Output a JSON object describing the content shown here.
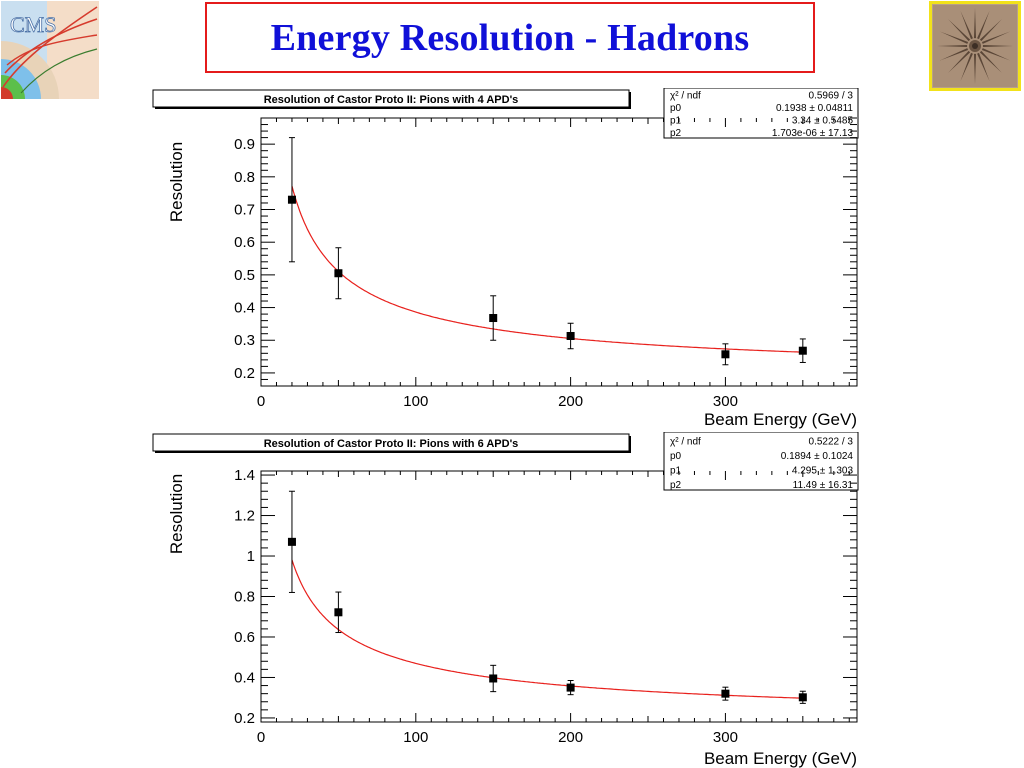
{
  "header": {
    "title": "Energy Resolution - Hadrons",
    "logo_left_text": "CMS"
  },
  "colors": {
    "title_text": "#1010d8",
    "title_border": "#e41b1b",
    "fit_line": "#e8201c",
    "marker": "#000000",
    "logo_right_border": "#f2e21a"
  },
  "chart_data": [
    {
      "type": "scatter",
      "title": "Resolution of Castor Proto II: Pions with 4 APD's",
      "xlabel": "Beam Energy (GeV)",
      "ylabel": "Resolution",
      "xlim": [
        0,
        385
      ],
      "ylim": [
        0.16,
        0.98
      ],
      "x_ticks": [
        0,
        100,
        200,
        300
      ],
      "y_ticks": [
        0.2,
        0.3,
        0.4,
        0.5,
        0.6,
        0.7,
        0.8,
        0.9
      ],
      "x_tick_labels": [
        "0",
        "100",
        "200",
        "300"
      ],
      "y_tick_labels": [
        "0.2",
        "0.3",
        "0.4",
        "0.5",
        "0.6",
        "0.7",
        "0.8",
        "0.9"
      ],
      "series": [
        {
          "x": [
            20,
            50,
            150,
            200,
            300,
            350
          ],
          "y": [
            0.73,
            0.505,
            0.368,
            0.313,
            0.257,
            0.268
          ],
          "err": [
            0.19,
            0.078,
            0.068,
            0.039,
            0.032,
            0.036
          ]
        }
      ],
      "fit": {
        "p0": 0.1938,
        "p1": 3.34,
        "p2": 0.0
      },
      "stats": [
        [
          "χ² / ndf",
          "0.5969 / 3"
        ],
        [
          "p0",
          "0.1938 ± 0.04811"
        ],
        [
          "p1",
          "3.34 ± 0.5485"
        ],
        [
          "p2",
          "1.703e-06 ± 17.13"
        ]
      ]
    },
    {
      "type": "scatter",
      "title": "Resolution of Castor Proto II: Pions with 6 APD's",
      "xlabel": "Beam Energy (GeV)",
      "ylabel": "Resolution",
      "xlim": [
        0,
        385
      ],
      "ylim": [
        0.18,
        1.42
      ],
      "x_ticks": [
        0,
        100,
        200,
        300
      ],
      "y_ticks": [
        0.2,
        0.4,
        0.6,
        0.8,
        1.0,
        1.2,
        1.4
      ],
      "x_tick_labels": [
        "0",
        "100",
        "200",
        "300"
      ],
      "y_tick_labels": [
        "0.2",
        "0.4",
        "0.6",
        "0.8",
        "1",
        "1.2",
        "1.4"
      ],
      "series": [
        {
          "x": [
            20,
            50,
            150,
            200,
            300,
            350
          ],
          "y": [
            1.07,
            0.722,
            0.395,
            0.35,
            0.32,
            0.302
          ],
          "err": [
            0.25,
            0.1,
            0.065,
            0.035,
            0.032,
            0.03
          ]
        }
      ],
      "fit": {
        "p0": 0.1894,
        "p1": 4.295,
        "p2": 11.49
      },
      "stats": [
        [
          "χ² / ndf",
          "0.5222 / 3"
        ],
        [
          "p0",
          "0.1894 ± 0.1024"
        ],
        [
          "p1",
          "4.295 ± 1.303"
        ],
        [
          "p2",
          "11.49 ± 16.31"
        ]
      ]
    }
  ]
}
